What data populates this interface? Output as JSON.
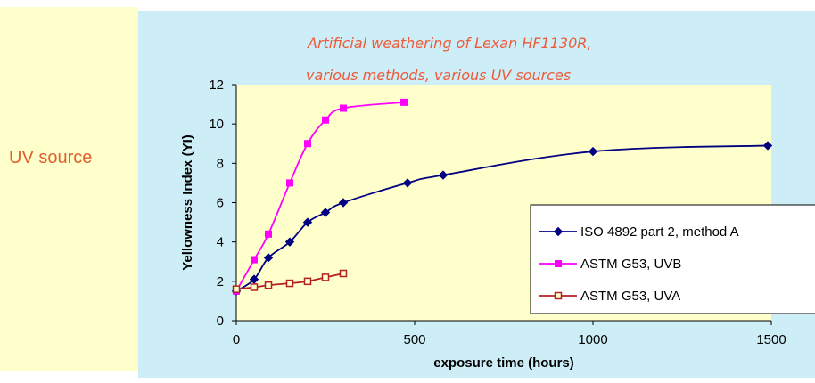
{
  "side_panel": {
    "label": "UV source"
  },
  "chart_data": {
    "type": "line",
    "title_lines": [
      "Artificial weathering of Lexan HF1130R,",
      "various methods, various UV sources"
    ],
    "xlabel": "exposure time (hours)",
    "ylabel": "Yellowness Index (YI)",
    "xlim": [
      0,
      1500
    ],
    "ylim": [
      0,
      12
    ],
    "xticks": [
      "0",
      "500",
      "1000",
      "1500"
    ],
    "yticks": [
      "0",
      "2",
      "4",
      "6",
      "8",
      "10",
      "12"
    ],
    "grid": false,
    "legend_position": "right",
    "series": [
      {
        "name": "ISO 4892 part 2, method A",
        "color": "#000080",
        "marker": "diamond",
        "x": [
          0,
          50,
          90,
          150,
          200,
          250,
          300,
          480,
          580,
          1000,
          1490
        ],
        "y": [
          1.5,
          2.1,
          3.2,
          4.0,
          5.0,
          5.5,
          6.0,
          7.0,
          7.4,
          8.6,
          8.9
        ]
      },
      {
        "name": "ASTM G53, UVB",
        "color": "#ff00ff",
        "marker": "square",
        "x": [
          0,
          50,
          90,
          150,
          200,
          250,
          300,
          470
        ],
        "y": [
          1.5,
          3.1,
          4.4,
          7.0,
          9.0,
          10.2,
          10.8,
          11.1
        ]
      },
      {
        "name": "ASTM G53, UVA",
        "color": "#b22222",
        "marker": "open-square",
        "x": [
          0,
          50,
          90,
          150,
          200,
          250,
          300
        ],
        "y": [
          1.6,
          1.7,
          1.8,
          1.9,
          2.0,
          2.2,
          2.4
        ]
      }
    ]
  }
}
